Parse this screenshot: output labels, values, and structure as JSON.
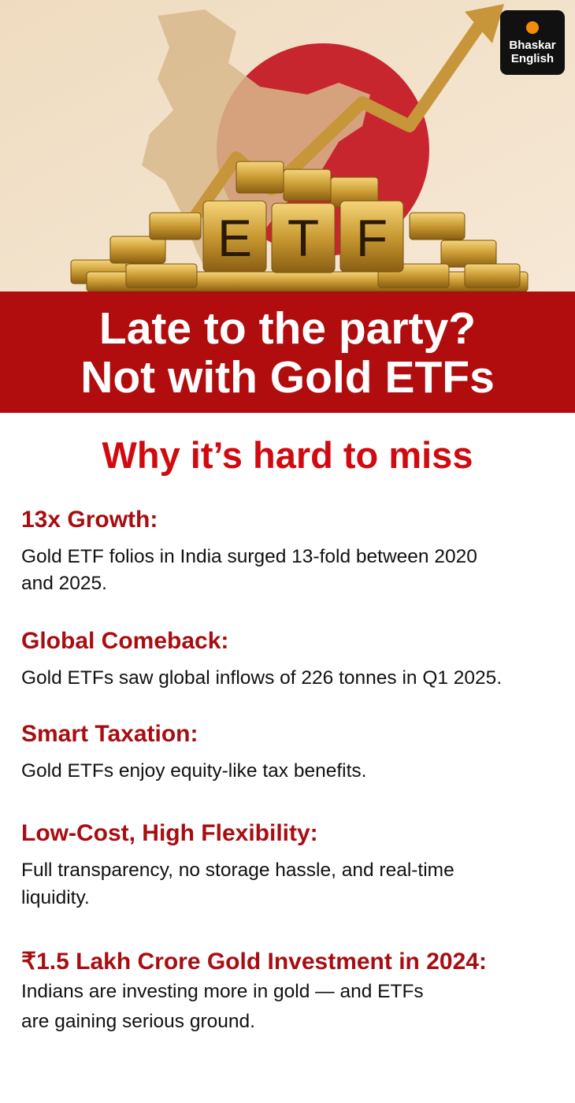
{
  "logo": {
    "line1": "Bhaskar",
    "line2": "English"
  },
  "hero": {
    "letters": [
      "E",
      "T",
      "F"
    ]
  },
  "banner": {
    "line1": "Late to the party?",
    "line2": "Not with Gold ETFs"
  },
  "subtitle": "Why it’s hard to miss",
  "sections": [
    {
      "heading": "13x Growth:",
      "lines": [
        "Gold ETF folios in India surged 13-fold between 2020",
        "and 2025."
      ]
    },
    {
      "heading": "Global Comeback:",
      "lines": [
        "Gold ETFs saw global inflows of 226 tonnes in Q1 2025."
      ]
    },
    {
      "heading": "Smart Taxation:",
      "lines": [
        "Gold ETFs enjoy equity-like tax benefits."
      ]
    },
    {
      "heading": "Low-Cost, High Flexibility:",
      "lines": [
        "Full transparency, no storage hassle, and real-time",
        "liquidity."
      ]
    },
    {
      "heading": "₹1.5 Lakh Crore Gold Investment in 2024:",
      "lines": [
        "Indians are investing more in gold — and ETFs",
        "are gaining serious ground."
      ]
    }
  ]
}
